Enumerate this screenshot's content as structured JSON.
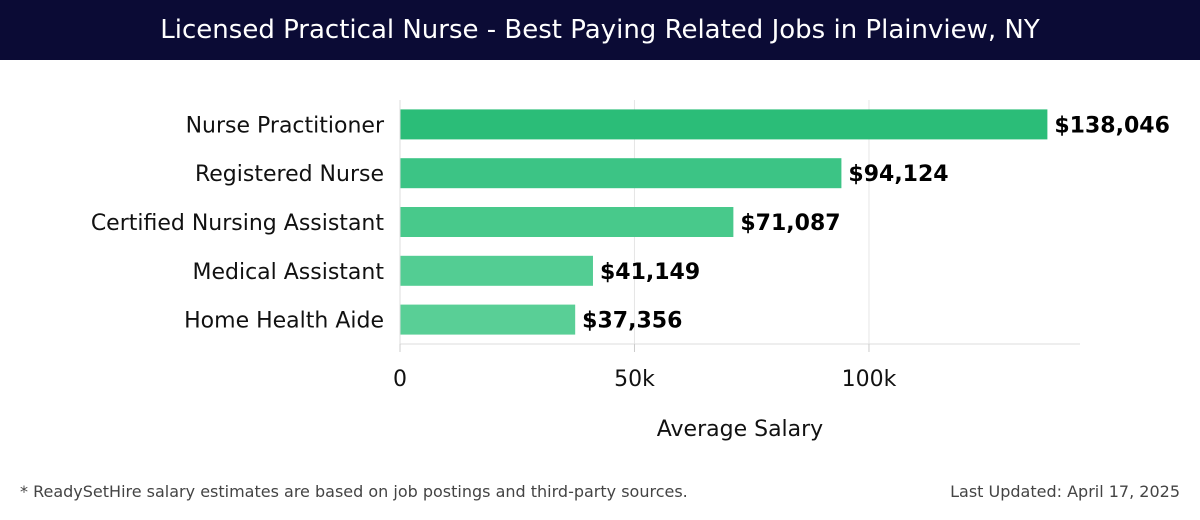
{
  "header": {
    "title": "Licensed Practical Nurse - Best Paying Related Jobs in Plainview, NY"
  },
  "footer": {
    "note": "* ReadySetHire salary estimates are based on job postings and third-party sources.",
    "updated": "Last Updated: April 17, 2025"
  },
  "chart_data": {
    "type": "bar",
    "orientation": "horizontal",
    "categories": [
      "Nurse Practitioner",
      "Registered Nurse",
      "Certified Nursing Assistant",
      "Medical Assistant",
      "Home Health Aide"
    ],
    "values": [
      138046,
      94124,
      71087,
      41149,
      37356
    ],
    "value_labels": [
      "$138,046",
      "$94,124",
      "$71,087",
      "$41,149",
      "$37,356"
    ],
    "xlabel": "Average Salary",
    "ylabel": "",
    "xlim": [
      0,
      145000
    ],
    "xticks": [
      0,
      50000,
      100000
    ],
    "xtick_labels": [
      "0",
      "50k",
      "100k"
    ],
    "grid": true,
    "colors": [
      "#2bbd78",
      "#3cc485",
      "#48c98b",
      "#53cd93",
      "#59cf96"
    ]
  }
}
